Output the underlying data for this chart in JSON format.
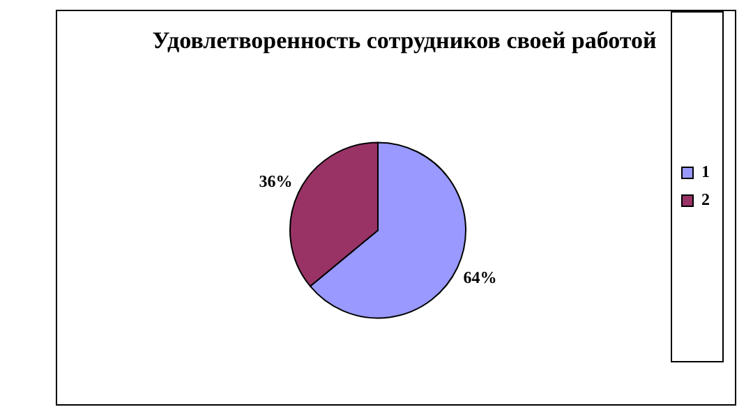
{
  "chart_data": {
    "type": "pie",
    "title": "Удовлетворенность сотрудников своей работой",
    "categories": [
      "1",
      "2"
    ],
    "values": [
      64,
      36
    ],
    "value_labels": [
      "64%",
      "36%"
    ],
    "colors": [
      "#9999ff",
      "#993366"
    ],
    "legend": "right"
  }
}
